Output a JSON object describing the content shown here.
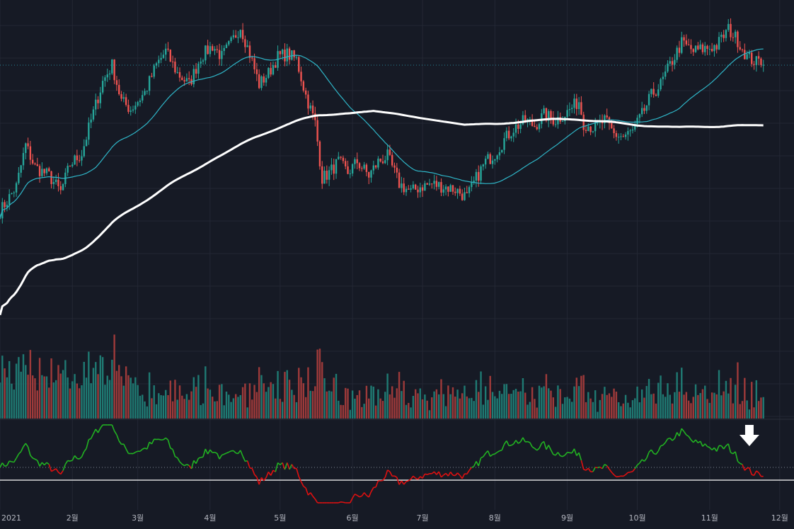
{
  "chart_data": {
    "type": "candlestick",
    "x_axis": {
      "tick_labels": [
        "2021",
        "2월",
        "3월",
        "4월",
        "5월",
        "6월",
        "7월",
        "8월",
        "9월",
        "10월",
        "11월",
        "12월"
      ],
      "start": "2021-01-01",
      "end": "2021-12-05"
    },
    "y_axis": {
      "visible": false,
      "last_price_line": 0.42
    },
    "grid": true,
    "colors": {
      "background": "#161a25",
      "grid": "#232734",
      "up": "#26a69a",
      "down": "#ef5350",
      "ma_short": "#2fb6c8",
      "ma_long": "#ffffff",
      "volume_up": "#1f7a73",
      "volume_down": "#9e3a3a",
      "osc_up": "#22b322",
      "osc_down": "#e01010",
      "osc_zero": "#ffffff",
      "osc_ref": "#7e8694"
    },
    "series": [
      {
        "kind": "price",
        "description": "daily close path, relative units",
        "points": [
          [
            "2021-01-01",
            0.26
          ],
          [
            "2021-01-08",
            0.35
          ],
          [
            "2021-01-12",
            0.5
          ],
          [
            "2021-01-16",
            0.42
          ],
          [
            "2021-01-22",
            0.39
          ],
          [
            "2021-01-27",
            0.33
          ],
          [
            "2021-01-31",
            0.43
          ],
          [
            "2021-02-05",
            0.47
          ],
          [
            "2021-02-09",
            0.59
          ],
          [
            "2021-02-14",
            0.73
          ],
          [
            "2021-02-18",
            0.79
          ],
          [
            "2021-02-22",
            0.66
          ],
          [
            "2021-02-26",
            0.63
          ],
          [
            "2021-03-04",
            0.69
          ],
          [
            "2021-03-09",
            0.79
          ],
          [
            "2021-03-13",
            0.84
          ],
          [
            "2021-03-18",
            0.76
          ],
          [
            "2021-03-23",
            0.72
          ],
          [
            "2021-03-28",
            0.82
          ],
          [
            "2021-04-02",
            0.86
          ],
          [
            "2021-04-06",
            0.82
          ],
          [
            "2021-04-10",
            0.87
          ],
          [
            "2021-04-14",
            0.93
          ],
          [
            "2021-04-18",
            0.83
          ],
          [
            "2021-04-22",
            0.72
          ],
          [
            "2021-04-26",
            0.76
          ],
          [
            "2021-04-30",
            0.82
          ],
          [
            "2021-05-04",
            0.83
          ],
          [
            "2021-05-08",
            0.81
          ],
          [
            "2021-05-12",
            0.68
          ],
          [
            "2021-05-16",
            0.58
          ],
          [
            "2021-05-19",
            0.38
          ],
          [
            "2021-05-22",
            0.4
          ],
          [
            "2021-05-26",
            0.44
          ],
          [
            "2021-05-30",
            0.4
          ],
          [
            "2021-06-03",
            0.44
          ],
          [
            "2021-06-08",
            0.39
          ],
          [
            "2021-06-12",
            0.44
          ],
          [
            "2021-06-16",
            0.46
          ],
          [
            "2021-06-21",
            0.36
          ],
          [
            "2021-06-26",
            0.33
          ],
          [
            "2021-06-30",
            0.35
          ],
          [
            "2021-07-05",
            0.36
          ],
          [
            "2021-07-10",
            0.35
          ],
          [
            "2021-07-15",
            0.34
          ],
          [
            "2021-07-20",
            0.31
          ],
          [
            "2021-07-24",
            0.38
          ],
          [
            "2021-07-28",
            0.44
          ],
          [
            "2021-08-01",
            0.47
          ],
          [
            "2021-08-05",
            0.52
          ],
          [
            "2021-08-09",
            0.56
          ],
          [
            "2021-08-14",
            0.59
          ],
          [
            "2021-08-18",
            0.57
          ],
          [
            "2021-08-22",
            0.61
          ],
          [
            "2021-08-27",
            0.59
          ],
          [
            "2021-09-01",
            0.62
          ],
          [
            "2021-09-06",
            0.66
          ],
          [
            "2021-09-08",
            0.58
          ],
          [
            "2021-09-13",
            0.56
          ],
          [
            "2021-09-17",
            0.59
          ],
          [
            "2021-09-21",
            0.54
          ],
          [
            "2021-09-25",
            0.53
          ],
          [
            "2021-09-29",
            0.55
          ],
          [
            "2021-10-03",
            0.61
          ],
          [
            "2021-10-07",
            0.68
          ],
          [
            "2021-10-11",
            0.72
          ],
          [
            "2021-10-15",
            0.79
          ],
          [
            "2021-10-20",
            0.87
          ],
          [
            "2021-10-25",
            0.84
          ],
          [
            "2021-10-30",
            0.85
          ],
          [
            "2021-11-04",
            0.86
          ],
          [
            "2021-11-09",
            0.92
          ],
          [
            "2021-11-13",
            0.88
          ],
          [
            "2021-11-17",
            0.82
          ],
          [
            "2021-11-21",
            0.8
          ],
          [
            "2021-11-24",
            0.81
          ]
        ]
      },
      {
        "kind": "moving_average",
        "name": "",
        "color": "#2fb6c8",
        "role": "short"
      },
      {
        "kind": "moving_average",
        "name": "",
        "color": "#ffffff",
        "role": "long"
      },
      {
        "kind": "volume",
        "name": ""
      },
      {
        "kind": "oscillator",
        "name": ""
      }
    ],
    "annotations": [
      {
        "type": "arrow-down",
        "icon": "arrow-down-icon",
        "color": "#ffffff",
        "at": "2021-11-18"
      }
    ]
  }
}
